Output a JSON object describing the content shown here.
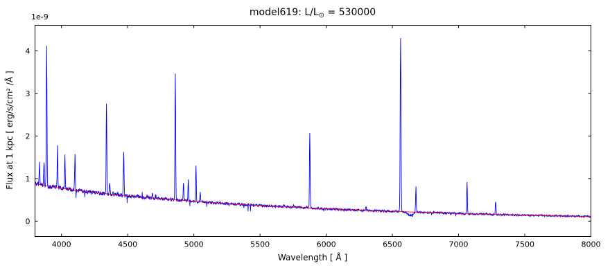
{
  "chart_data": {
    "type": "line",
    "title": "model619: L/L⊙ = 530000",
    "title_parts": {
      "main": "model619: L/L",
      "sub": "⊙",
      "rest": " = 530000"
    },
    "xlabel": "Wavelength [ Å ]",
    "ylabel": "Flux at 1 kpc [ erg/s/cm² /Å ]",
    "y_offset_label": "1e-9",
    "y_unit_factor": "1e-9",
    "xlim": [
      3800,
      8000
    ],
    "ylim": [
      -0.36,
      4.6
    ],
    "xticks": [
      4000,
      4500,
      5000,
      5500,
      6000,
      6500,
      7000,
      7500,
      8000
    ],
    "yticks": [
      0,
      1,
      2,
      3,
      4
    ],
    "grid": false,
    "legend": "none",
    "background": "#ffffff",
    "series": [
      {
        "name": "continuum-model",
        "color": "#ff0000",
        "style": "smooth continuum",
        "x": [
          3800,
          3900,
          4000,
          4100,
          4200,
          4300,
          4400,
          4500,
          4600,
          4700,
          4800,
          4900,
          5000,
          5100,
          5200,
          5300,
          5400,
          5500,
          5600,
          5700,
          5800,
          5900,
          6000,
          6100,
          6200,
          6300,
          6400,
          6500,
          6600,
          6700,
          6800,
          6900,
          7000,
          7100,
          7200,
          7300,
          7400,
          7500,
          7600,
          7700,
          7800,
          7900,
          8000
        ],
        "y": [
          0.88,
          0.82,
          0.77,
          0.73,
          0.69,
          0.655,
          0.625,
          0.595,
          0.565,
          0.54,
          0.515,
          0.49,
          0.465,
          0.445,
          0.425,
          0.405,
          0.385,
          0.365,
          0.35,
          0.335,
          0.32,
          0.305,
          0.29,
          0.275,
          0.265,
          0.25,
          0.24,
          0.23,
          0.22,
          0.21,
          0.2,
          0.19,
          0.18,
          0.17,
          0.165,
          0.155,
          0.15,
          0.14,
          0.135,
          0.128,
          0.12,
          0.113,
          0.107
        ]
      },
      {
        "name": "spectrum",
        "color": "#0000ff",
        "style": "noisy spectrum with narrow emission lines on same continuum",
        "noise_amplitude_relative": 0.05,
        "emission_lines_format": [
          "wavelength_A",
          "peak_flux_1e-9",
          "sigma_A"
        ],
        "emission_lines": [
          [
            3834,
            1.35,
            2.5
          ],
          [
            3868,
            1.4,
            2.5
          ],
          [
            3888,
            4.1,
            2.5
          ],
          [
            3970,
            1.75,
            2.5
          ],
          [
            4026,
            1.52,
            2.5
          ],
          [
            4102,
            1.55,
            2.5
          ],
          [
            4144,
            0.72,
            2.5
          ],
          [
            4340,
            2.8,
            2.5
          ],
          [
            4364,
            0.9,
            2.5
          ],
          [
            4388,
            0.68,
            2.5
          ],
          [
            4470,
            1.6,
            2.5
          ],
          [
            4648,
            0.62,
            3
          ],
          [
            4686,
            0.66,
            2.5
          ],
          [
            4712,
            0.6,
            2.5
          ],
          [
            4860,
            3.45,
            2.5
          ],
          [
            4922,
            0.92,
            2.5
          ],
          [
            4958,
            0.95,
            2.5
          ],
          [
            5016,
            1.3,
            2.5
          ],
          [
            5048,
            0.68,
            2.5
          ],
          [
            5680,
            0.4,
            3
          ],
          [
            5754,
            0.36,
            2.5
          ],
          [
            5876,
            2.08,
            2.5
          ],
          [
            6300,
            0.34,
            2.5
          ],
          [
            6562,
            4.3,
            3
          ],
          [
            6634,
            0.13,
            18
          ],
          [
            6678,
            0.8,
            2.5
          ],
          [
            7064,
            0.9,
            2.5
          ],
          [
            7280,
            0.5,
            2.5
          ]
        ]
      }
    ]
  }
}
